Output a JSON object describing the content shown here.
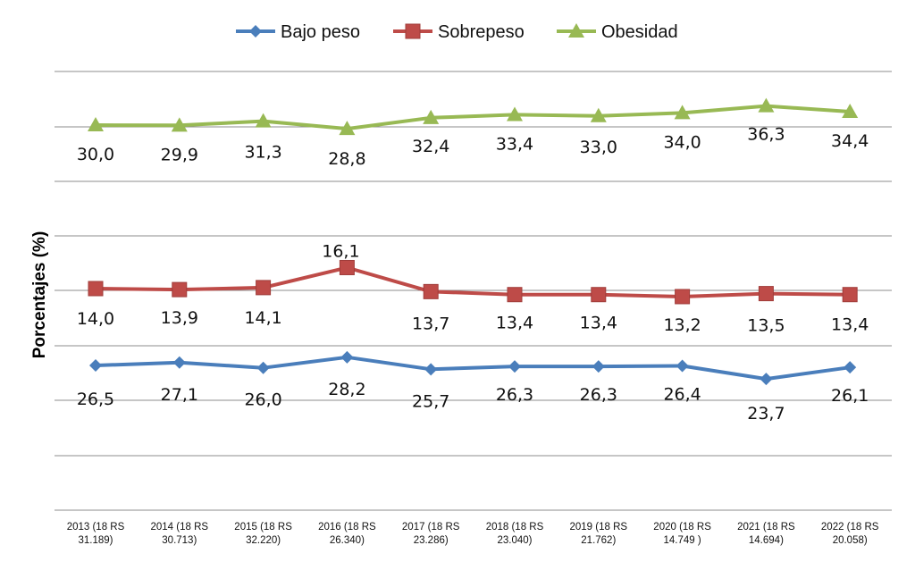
{
  "chart_data": {
    "type": "line",
    "title": "",
    "ylabel": "Porcentajes (%)",
    "xlabel": "",
    "legend_position": "top",
    "grid": true,
    "categories": [
      [
        "2013 (18 RS",
        "31.189)"
      ],
      [
        "2014 (18 RS",
        "30.713)"
      ],
      [
        "2015 (18 RS",
        "32.220)"
      ],
      [
        "2016 (18 RS",
        "26.340)"
      ],
      [
        "2017 (18 RS",
        "23.286)"
      ],
      [
        "2018 (18 RS",
        "23.040)"
      ],
      [
        "2019 (18 RS",
        "21.762)"
      ],
      [
        "2020 (18 RS",
        "14.749 )"
      ],
      [
        "2021 (18 RS",
        "14.694)"
      ],
      [
        "2022 (18 RS",
        "20.058)"
      ]
    ],
    "series": [
      {
        "name": "Bajo peso",
        "color": "#4a7ebb",
        "marker": "diamond",
        "values": [
          26.5,
          27.1,
          26.0,
          28.2,
          25.7,
          26.3,
          26.3,
          26.4,
          23.7,
          26.1
        ],
        "labels": [
          "26,5",
          "27,1",
          "26,0",
          "28,2",
          "25,7",
          "26,3",
          "26,3",
          "26,4",
          "23,7",
          "26,1"
        ]
      },
      {
        "name": "Sobrepeso",
        "color": "#be4b48",
        "marker": "square",
        "values": [
          14.0,
          13.9,
          14.1,
          16.1,
          13.7,
          13.4,
          13.4,
          13.2,
          13.5,
          13.4
        ],
        "labels": [
          "14,0",
          "13,9",
          "14,1",
          "16,1",
          "13,7",
          "13,4",
          "13,4",
          "13,2",
          "13,5",
          "13,4"
        ]
      },
      {
        "name": "Obesidad",
        "color": "#98b954",
        "marker": "triangle",
        "values": [
          30.0,
          29.9,
          31.3,
          28.8,
          32.4,
          33.4,
          33.0,
          34.0,
          36.3,
          34.4
        ],
        "labels": [
          "30,0",
          "29,9",
          "31,3",
          "28,8",
          "32,4",
          "33,4",
          "33,0",
          "34,0",
          "36,3",
          "34,4"
        ]
      }
    ]
  }
}
